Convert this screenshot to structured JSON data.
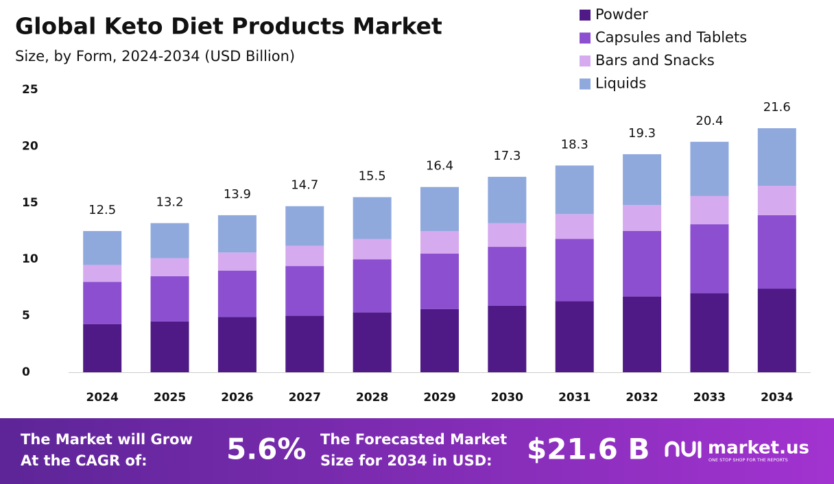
{
  "chart_data": {
    "type": "stacked_bar",
    "title": "Global Keto Diet Products Market",
    "subtitle": "Size, by Form, 2024-2034 (USD Billion)",
    "categories": [
      "2024",
      "2025",
      "2026",
      "2027",
      "2028",
      "2029",
      "2030",
      "2031",
      "2032",
      "2033",
      "2034"
    ],
    "series": [
      {
        "name": "Powder",
        "color": "#4f1a86",
        "values": [
          4.25,
          4.5,
          4.9,
          5.0,
          5.3,
          5.6,
          5.9,
          6.3,
          6.7,
          7.0,
          7.4
        ]
      },
      {
        "name": "Capsules and Tablets",
        "color": "#8b4fd0",
        "values": [
          3.75,
          4.0,
          4.1,
          4.4,
          4.7,
          4.9,
          5.2,
          5.5,
          5.8,
          6.1,
          6.5
        ]
      },
      {
        "name": "Bars and Snacks",
        "color": "#d5aaef",
        "values": [
          1.5,
          1.6,
          1.6,
          1.8,
          1.8,
          2.0,
          2.1,
          2.2,
          2.3,
          2.5,
          2.6
        ]
      },
      {
        "name": "Liquids",
        "color": "#90a9dd",
        "values": [
          3.0,
          3.1,
          3.3,
          3.5,
          3.7,
          3.9,
          4.1,
          4.3,
          4.5,
          4.8,
          5.1
        ]
      }
    ],
    "totals": [
      12.5,
      13.2,
      13.9,
      14.7,
      15.5,
      16.4,
      17.3,
      18.3,
      19.3,
      20.4,
      21.6
    ],
    "ylim": [
      0,
      25
    ],
    "yticks": [
      0,
      5,
      10,
      15,
      20,
      25
    ],
    "grid": false
  },
  "footer": {
    "cagr_text": [
      "The Market will Grow",
      "At the CAGR of:"
    ],
    "cagr": "5.6%",
    "forecast_text": [
      "The Forecasted Market",
      "Size for 2034 in USD:"
    ],
    "forecast": "$21.6 B",
    "brand": "market.us",
    "tagline": "ONE STOP SHOP FOR THE REPORTS"
  }
}
